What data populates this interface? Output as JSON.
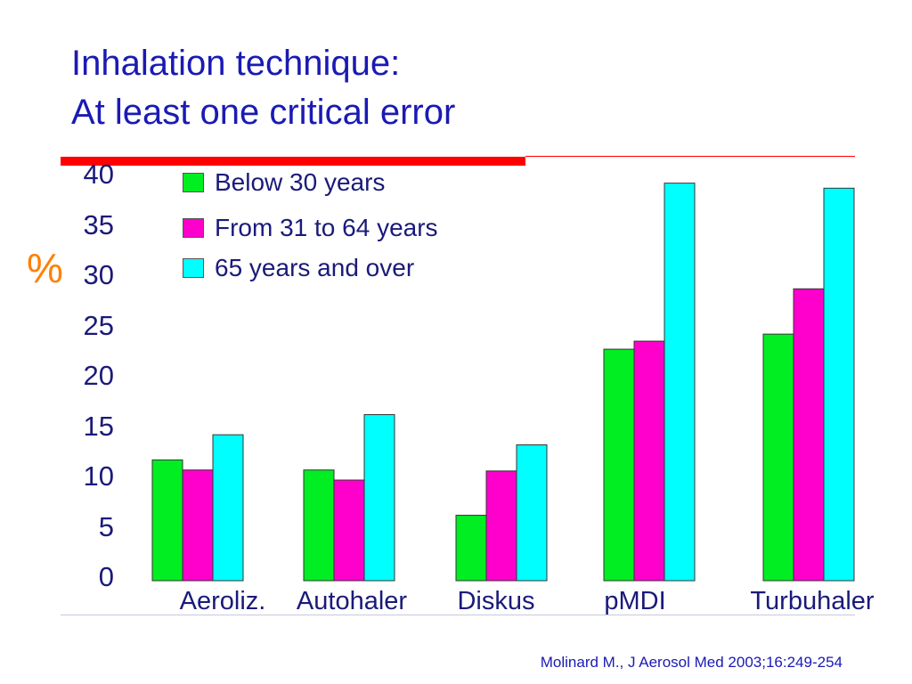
{
  "slide": {
    "title_line1": "Inhalation technique:",
    "title_line2": "At least one critical error",
    "credit": "Molinard M., J Aerosol Med 2003;16:249-254"
  },
  "colors": {
    "title": "#1a1ab4",
    "accent_rule": "#ff0000",
    "axis_symbol": "#ff8000"
  },
  "chart_data": {
    "type": "bar",
    "title": "",
    "ylabel": "%",
    "xlabel": "",
    "ylim": [
      0,
      40
    ],
    "yticks": [
      "0",
      "5",
      "10",
      "15",
      "20",
      "25",
      "30",
      "35",
      "40"
    ],
    "categories": [
      "Aeroliz.",
      "Autohaler",
      "Diskus",
      "pMDI",
      "Turbuhaler"
    ],
    "legend_position": "top-left",
    "grid": false,
    "series": [
      {
        "name": "Below 30 years",
        "color": "#00ee22",
        "values": [
          12,
          11,
          6.5,
          23,
          24.5
        ]
      },
      {
        "name": "From 31 to 64 years",
        "color": "#ff00cc",
        "values": [
          11,
          10,
          10.9,
          23.8,
          29
        ]
      },
      {
        "name": "65 years and over",
        "color": "#00ffff",
        "values": [
          14.5,
          16.5,
          13.5,
          39.5,
          39
        ]
      }
    ]
  }
}
